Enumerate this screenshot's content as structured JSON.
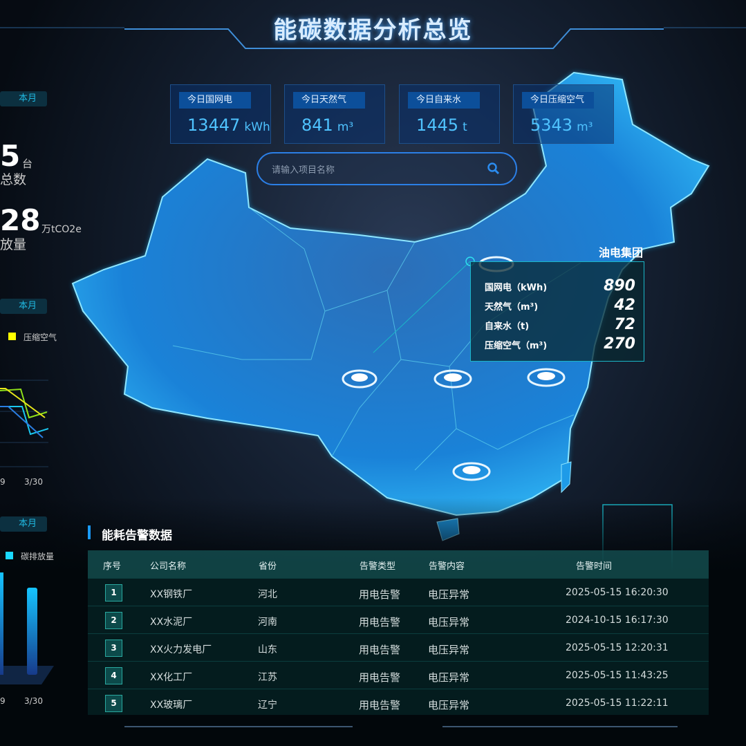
{
  "header": {
    "title": "能碳数据分析总览"
  },
  "cards": [
    {
      "label": "今日国网电",
      "value": "13447",
      "unit": "kWh"
    },
    {
      "label": "今日天然气",
      "value": "841",
      "unit": "m³"
    },
    {
      "label": "今日自来水",
      "value": "1445",
      "unit": "t"
    },
    {
      "label": "今日压缩空气",
      "value": "5343",
      "unit": "m³"
    }
  ],
  "search": {
    "placeholder": "请输入项目名称",
    "icon": "search-icon"
  },
  "tooltip": {
    "title": "油电集团",
    "rows": [
      {
        "label": "国网电（kWh)",
        "value": "890"
      },
      {
        "label": "天然气（m³)",
        "value": "42"
      },
      {
        "label": "自来水（t)",
        "value": "72"
      },
      {
        "label": "压缩空气（m³)",
        "value": "270"
      }
    ]
  },
  "left": {
    "stats_period": "本月",
    "device_count": "5",
    "device_unit": "台",
    "device_label": "总数",
    "emission_value": "28",
    "emission_unit": "万tCO2e",
    "emission_label": "放量",
    "line_period": "本月",
    "line_legend": "压缩空气",
    "line_ticks": [
      "9",
      "3/30"
    ],
    "bar_period": "本月",
    "bar_legend": "碳排放量",
    "bar_ticks": [
      "9",
      "3/30"
    ]
  },
  "alerts": {
    "title": "能耗告警数据",
    "columns": [
      "序号",
      "公司名称",
      "省份",
      "告警类型",
      "告警内容",
      "告警时间"
    ],
    "rows": [
      {
        "idx": "1",
        "company": "XX钢铁厂",
        "province": "河北",
        "type": "用电告警",
        "content": "电压异常",
        "time": "2025-05-15 16:20:30"
      },
      {
        "idx": "2",
        "company": "XX水泥厂",
        "province": "河南",
        "type": "用电告警",
        "content": "电压异常",
        "time": "2024-10-15 16:17:30"
      },
      {
        "idx": "3",
        "company": "XX火力发电厂",
        "province": "山东",
        "type": "用电告警",
        "content": "电压异常",
        "time": "2025-05-15 12:20:31"
      },
      {
        "idx": "4",
        "company": "XX化工厂",
        "province": "江苏",
        "type": "用电告警",
        "content": "电压异常",
        "time": "2025-05-15 11:43:25"
      },
      {
        "idx": "5",
        "company": "XX玻璃厂",
        "province": "辽宁",
        "type": "用电告警",
        "content": "电压异常",
        "time": "2025-05-15 11:22:11"
      }
    ]
  },
  "colors": {
    "accent": "#1a9bff",
    "map": "#1e8fe0",
    "cyan": "#1bb7c8"
  }
}
